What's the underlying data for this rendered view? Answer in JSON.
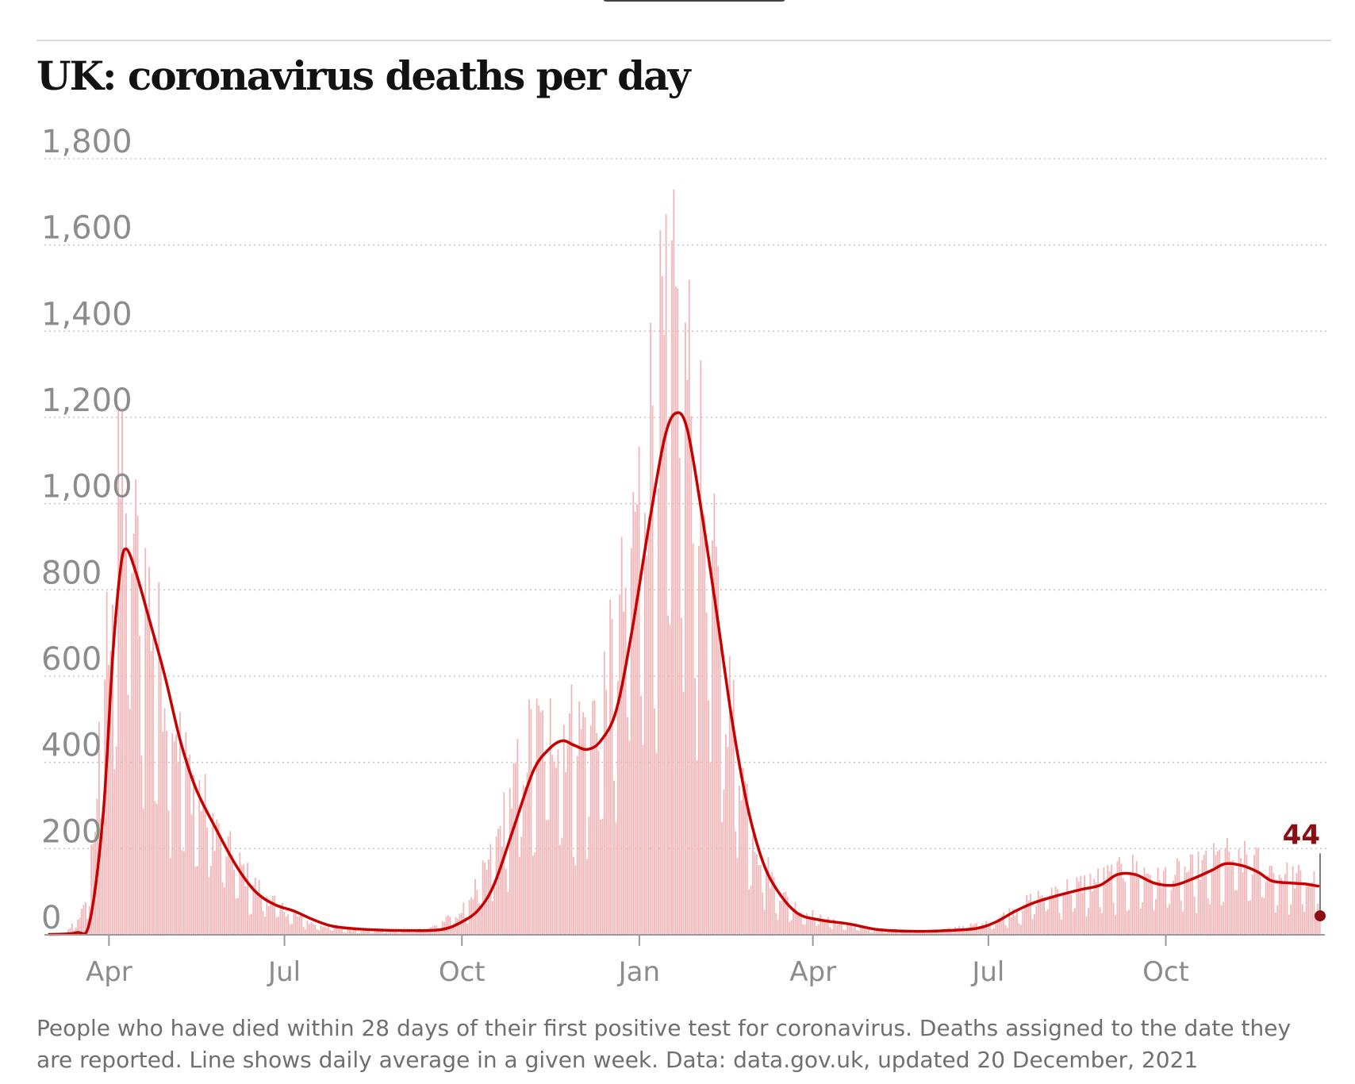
{
  "header": {
    "title": "UK: coronavirus deaths per day"
  },
  "footer": {
    "note": "People who have died within 28 days of their first positive test for coronavirus. Deaths assigned to the date they are reported. Line shows daily average in a given week. Data: data.gov.uk, updated 20 December, 2021"
  },
  "chart_data": {
    "type": "bar",
    "title": "UK: coronavirus deaths per day",
    "xlabel": "",
    "ylabel": "",
    "x_range": [
      "2020-03-01",
      "2021-12-20"
    ],
    "ylim": [
      0,
      1800
    ],
    "yticks": [
      0,
      200,
      400,
      600,
      800,
      1000,
      1200,
      1400,
      1600,
      1800
    ],
    "ytick_labels": [
      "0",
      "200",
      "400",
      "600",
      "800",
      "1,000",
      "1,200",
      "1,400",
      "1,600",
      "1,800"
    ],
    "xticks": [
      "2020-04-01",
      "2020-07-01",
      "2020-10-01",
      "2021-01-01",
      "2021-04-01",
      "2021-07-01",
      "2021-10-01"
    ],
    "xtick_labels": [
      "Apr",
      "Jul",
      "Oct",
      "Jan",
      "Apr",
      "Jul",
      "Oct"
    ],
    "grid": "horizontal dotted",
    "colors": {
      "bars": "#f2b6b8",
      "line": "#c70000",
      "end_marker": "#8b0e15"
    },
    "daily_deaths_envelope": [
      [
        "2020-03-01",
        0
      ],
      [
        "2020-03-10",
        5
      ],
      [
        "2020-03-20",
        60
      ],
      [
        "2020-03-25",
        250
      ],
      [
        "2020-04-01",
        700
      ],
      [
        "2020-04-08",
        1000
      ],
      [
        "2020-04-12",
        880
      ],
      [
        "2020-04-20",
        760
      ],
      [
        "2020-04-30",
        560
      ],
      [
        "2020-05-10",
        380
      ],
      [
        "2020-05-20",
        290
      ],
      [
        "2020-06-01",
        190
      ],
      [
        "2020-06-15",
        110
      ],
      [
        "2020-07-01",
        55
      ],
      [
        "2020-07-15",
        25
      ],
      [
        "2020-08-01",
        12
      ],
      [
        "2020-09-01",
        8
      ],
      [
        "2020-09-15",
        15
      ],
      [
        "2020-10-01",
        50
      ],
      [
        "2020-10-15",
        150
      ],
      [
        "2020-10-25",
        280
      ],
      [
        "2020-11-05",
        420
      ],
      [
        "2020-11-20",
        460
      ],
      [
        "2020-12-01",
        440
      ],
      [
        "2020-12-10",
        480
      ],
      [
        "2020-12-20",
        620
      ],
      [
        "2020-12-30",
        900
      ],
      [
        "2021-01-10",
        1200
      ],
      [
        "2021-01-20",
        1300
      ],
      [
        "2021-01-26",
        1200
      ],
      [
        "2021-02-05",
        900
      ],
      [
        "2021-02-15",
        560
      ],
      [
        "2021-02-25",
        320
      ],
      [
        "2021-03-05",
        170
      ],
      [
        "2021-03-15",
        90
      ],
      [
        "2021-03-25",
        55
      ],
      [
        "2021-04-10",
        30
      ],
      [
        "2021-05-01",
        12
      ],
      [
        "2021-06-01",
        8
      ],
      [
        "2021-07-01",
        25
      ],
      [
        "2021-07-15",
        55
      ],
      [
        "2021-08-01",
        95
      ],
      [
        "2021-08-15",
        105
      ],
      [
        "2021-09-01",
        125
      ],
      [
        "2021-09-15",
        145
      ],
      [
        "2021-10-01",
        125
      ],
      [
        "2021-10-15",
        140
      ],
      [
        "2021-11-01",
        170
      ],
      [
        "2021-11-15",
        160
      ],
      [
        "2021-12-01",
        130
      ],
      [
        "2021-12-19",
        115
      ],
      [
        "2021-12-20",
        44
      ]
    ],
    "series": [
      {
        "values": [
          [
            "2020-03-01",
            1
          ],
          [
            "2020-03-15",
            5
          ],
          [
            "2020-03-22",
            30
          ],
          [
            "2020-03-29",
            280
          ],
          [
            "2020-04-03",
            650
          ],
          [
            "2020-04-07",
            850
          ],
          [
            "2020-04-10",
            895
          ],
          [
            "2020-04-15",
            840
          ],
          [
            "2020-04-22",
            730
          ],
          [
            "2020-04-30",
            600
          ],
          [
            "2020-05-08",
            450
          ],
          [
            "2020-05-16",
            340
          ],
          [
            "2020-05-26",
            250
          ],
          [
            "2020-06-06",
            160
          ],
          [
            "2020-06-16",
            100
          ],
          [
            "2020-06-26",
            70
          ],
          [
            "2020-07-06",
            55
          ],
          [
            "2020-07-16",
            35
          ],
          [
            "2020-07-26",
            20
          ],
          [
            "2020-08-10",
            13
          ],
          [
            "2020-09-01",
            10
          ],
          [
            "2020-09-20",
            12
          ],
          [
            "2020-10-01",
            30
          ],
          [
            "2020-10-10",
            60
          ],
          [
            "2020-10-18",
            120
          ],
          [
            "2020-10-28",
            250
          ],
          [
            "2020-11-07",
            380
          ],
          [
            "2020-11-15",
            430
          ],
          [
            "2020-11-22",
            450
          ],
          [
            "2020-11-28",
            440
          ],
          [
            "2020-12-05",
            430
          ],
          [
            "2020-12-12",
            450
          ],
          [
            "2020-12-20",
            520
          ],
          [
            "2020-12-28",
            700
          ],
          [
            "2021-01-06",
            950
          ],
          [
            "2021-01-14",
            1150
          ],
          [
            "2021-01-20",
            1210
          ],
          [
            "2021-01-26",
            1170
          ],
          [
            "2021-02-03",
            960
          ],
          [
            "2021-02-10",
            750
          ],
          [
            "2021-02-18",
            500
          ],
          [
            "2021-02-26",
            300
          ],
          [
            "2021-03-06",
            170
          ],
          [
            "2021-03-14",
            100
          ],
          [
            "2021-03-24",
            50
          ],
          [
            "2021-04-04",
            35
          ],
          [
            "2021-04-20",
            25
          ],
          [
            "2021-05-05",
            12
          ],
          [
            "2021-05-25",
            8
          ],
          [
            "2021-06-10",
            10
          ],
          [
            "2021-06-25",
            15
          ],
          [
            "2021-07-05",
            30
          ],
          [
            "2021-07-15",
            55
          ],
          [
            "2021-07-25",
            75
          ],
          [
            "2021-08-05",
            90
          ],
          [
            "2021-08-18",
            105
          ],
          [
            "2021-08-28",
            115
          ],
          [
            "2021-09-06",
            140
          ],
          [
            "2021-09-15",
            140
          ],
          [
            "2021-09-25",
            120
          ],
          [
            "2021-10-05",
            115
          ],
          [
            "2021-10-15",
            130
          ],
          [
            "2021-10-25",
            150
          ],
          [
            "2021-11-01",
            165
          ],
          [
            "2021-11-10",
            160
          ],
          [
            "2021-11-18",
            145
          ],
          [
            "2021-11-25",
            125
          ],
          [
            "2021-12-05",
            120
          ],
          [
            "2021-12-12",
            118
          ],
          [
            "2021-12-19",
            113
          ]
        ]
      }
    ],
    "annotation": {
      "date": "2021-12-20",
      "value": 44,
      "label": "44"
    }
  }
}
